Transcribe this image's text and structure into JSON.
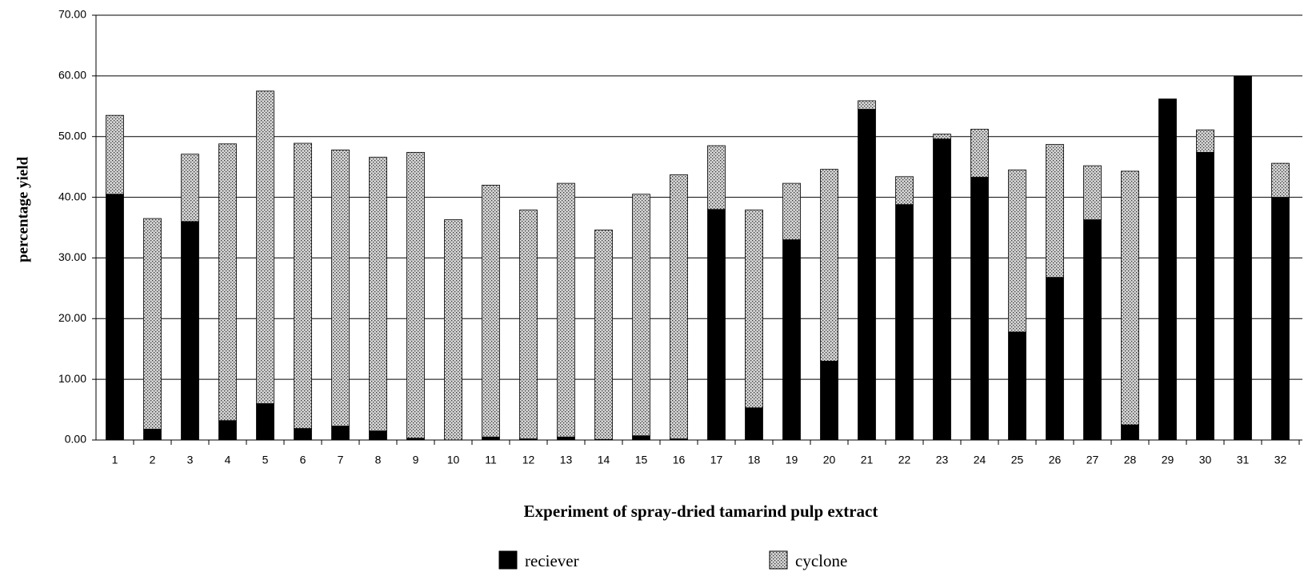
{
  "chart_data": {
    "type": "stacked_bar",
    "xlabel": "Experiment of spray-dried tamarind pulp extract",
    "ylabel": "percentage  yield",
    "categories": [
      "1",
      "2",
      "3",
      "4",
      "5",
      "6",
      "7",
      "8",
      "9",
      "10",
      "11",
      "12",
      "13",
      "14",
      "15",
      "16",
      "17",
      "18",
      "19",
      "20",
      "21",
      "22",
      "23",
      "24",
      "25",
      "26",
      "27",
      "28",
      "29",
      "30",
      "31",
      "32"
    ],
    "series": [
      {
        "name": "reciever",
        "color": "#000000",
        "values": [
          40.5,
          1.8,
          36.0,
          3.2,
          6.0,
          1.9,
          2.3,
          1.5,
          0.3,
          0,
          0.5,
          0.2,
          0.5,
          0.1,
          0.7,
          0.2,
          38.0,
          5.3,
          33.0,
          13.0,
          54.5,
          38.8,
          49.6,
          43.3,
          17.8,
          26.8,
          36.3,
          2.5,
          56.2,
          47.4,
          60.0,
          40.0
        ]
      },
      {
        "name": "cyclone",
        "color": "#d4d4d4",
        "values": [
          13.0,
          34.7,
          11.1,
          45.6,
          51.5,
          47.0,
          45.5,
          45.1,
          47.1,
          36.3,
          41.5,
          37.7,
          41.8,
          34.5,
          39.8,
          43.5,
          10.5,
          32.6,
          9.3,
          31.6,
          1.4,
          4.6,
          0.8,
          7.9,
          26.7,
          21.9,
          8.9,
          41.8,
          0,
          3.7,
          0,
          5.6
        ]
      }
    ],
    "ylim": [
      0,
      70
    ],
    "yticks": [
      {
        "value": 0,
        "label": "0.00"
      },
      {
        "value": 10,
        "label": "10.00"
      },
      {
        "value": 20,
        "label": "20.00"
      },
      {
        "value": 30,
        "label": "30.00"
      },
      {
        "value": 40,
        "label": "40.00"
      },
      {
        "value": 50,
        "label": "50.00"
      },
      {
        "value": 60,
        "label": "60.00"
      },
      {
        "value": 70,
        "label": "70.00"
      }
    ],
    "grid": true
  }
}
